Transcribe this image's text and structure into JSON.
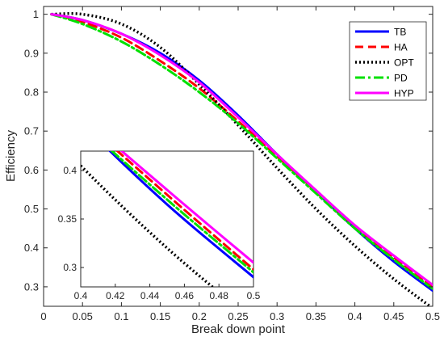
{
  "chart_data": {
    "type": "line",
    "xlabel": "Break down point",
    "ylabel": "Efficiency",
    "xlim": [
      0,
      0.5
    ],
    "ylim": [
      0.25,
      1.02
    ],
    "xticks": [
      "0",
      "0.05",
      "0.1",
      "0.15",
      "0.2",
      "0.25",
      "0.3",
      "0.35",
      "0.4",
      "0.45",
      "0.5"
    ],
    "yticks": [
      "0.3",
      "0.4",
      "0.5",
      "0.6",
      "0.7",
      "0.8",
      "0.9",
      "1"
    ],
    "grid": false,
    "legend_position": "top-right",
    "series": [
      {
        "name": "TB",
        "color": "#0000ff",
        "dash": "solid",
        "x": [
          0.01,
          0.05,
          0.1,
          0.15,
          0.2,
          0.25,
          0.3,
          0.35,
          0.4,
          0.45,
          0.5
        ],
        "y": [
          1.0,
          0.985,
          0.95,
          0.9,
          0.83,
          0.74,
          0.64,
          0.545,
          0.45,
          0.365,
          0.29
        ]
      },
      {
        "name": "HA",
        "color": "#ff0000",
        "dash": "dash",
        "x": [
          0.01,
          0.05,
          0.1,
          0.15,
          0.2,
          0.25,
          0.3,
          0.35,
          0.4,
          0.45,
          0.5
        ],
        "y": [
          1.0,
          0.98,
          0.94,
          0.88,
          0.81,
          0.725,
          0.635,
          0.545,
          0.455,
          0.375,
          0.298
        ]
      },
      {
        "name": "OPT",
        "color": "#000000",
        "dash": "dot",
        "x": [
          0.01,
          0.05,
          0.1,
          0.15,
          0.2,
          0.25,
          0.3,
          0.35,
          0.4,
          0.45,
          0.5
        ],
        "y": [
          1.0,
          1.0,
          0.975,
          0.915,
          0.82,
          0.715,
          0.605,
          0.5,
          0.405,
          0.32,
          0.245
        ]
      },
      {
        "name": "PD",
        "color": "#00e000",
        "dash": "dashdot",
        "x": [
          0.01,
          0.05,
          0.1,
          0.15,
          0.2,
          0.25,
          0.3,
          0.35,
          0.4,
          0.45,
          0.5
        ],
        "y": [
          1.0,
          0.975,
          0.93,
          0.87,
          0.8,
          0.72,
          0.63,
          0.54,
          0.45,
          0.37,
          0.295
        ]
      },
      {
        "name": "HYP",
        "color": "#ff00ff",
        "dash": "solid",
        "x": [
          0.01,
          0.05,
          0.1,
          0.15,
          0.2,
          0.25,
          0.3,
          0.35,
          0.4,
          0.45,
          0.5
        ],
        "y": [
          1.0,
          0.985,
          0.95,
          0.895,
          0.825,
          0.735,
          0.64,
          0.548,
          0.458,
          0.38,
          0.305
        ]
      }
    ],
    "inset": {
      "xlim": [
        0.4,
        0.5
      ],
      "ylim": [
        0.28,
        0.42
      ],
      "xticks": [
        "0.4",
        "0.42",
        "0.44",
        "0.46",
        "0.48",
        "0.5"
      ],
      "yticks": [
        "0.3",
        "0.35",
        "0.4"
      ]
    }
  }
}
